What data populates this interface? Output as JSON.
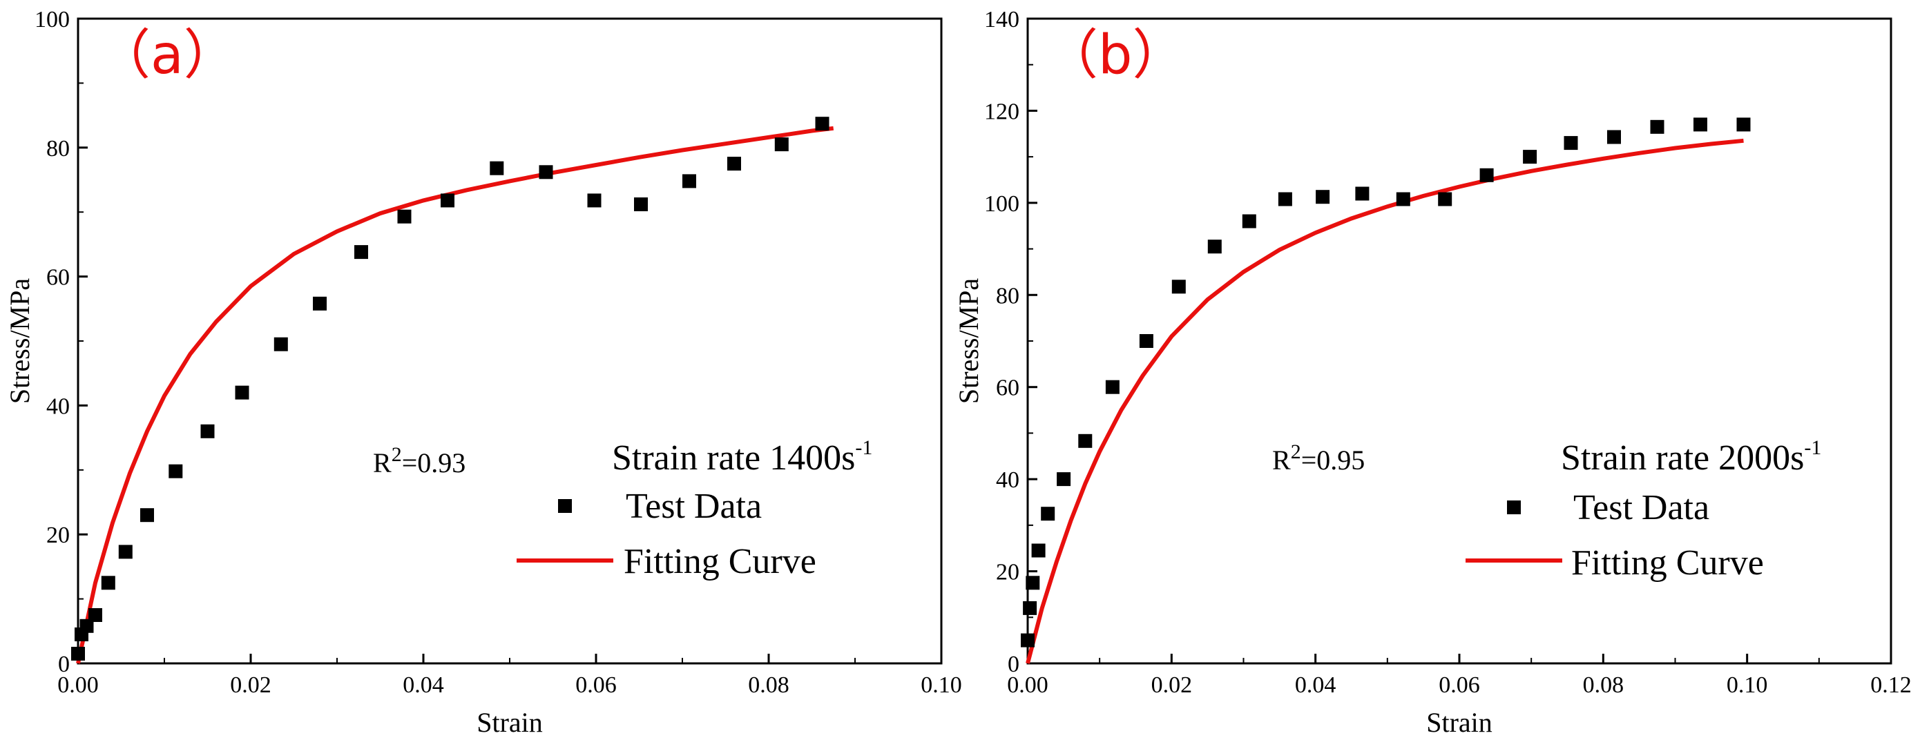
{
  "colors": {
    "marker": "#000000",
    "curve": "#e8100e",
    "label": "#e8100e",
    "axis": "#000000"
  },
  "chart_data": [
    {
      "type": "scatter",
      "panel_label": "（a）",
      "xlabel": "Strain",
      "ylabel": "Stress/MPa",
      "xlim": [
        0,
        0.1
      ],
      "ylim": [
        0,
        100
      ],
      "xticks": [
        "0.00",
        "0.02",
        "0.04",
        "0.06",
        "0.08",
        "0.10"
      ],
      "yticks": [
        "0",
        "20",
        "40",
        "60",
        "80",
        "100"
      ],
      "rate_text": "Strain rate 1400s",
      "rate_sup": "-1",
      "r2_prefix": "R",
      "r2_sup": "2",
      "r2_value": "=0.93",
      "legend": {
        "markers": "Test Data",
        "curve": "Fitting Curve"
      },
      "series": [
        {
          "name": "Test Data",
          "x": [
            0.0,
            0.0004,
            0.001,
            0.002,
            0.0035,
            0.0055,
            0.008,
            0.0113,
            0.015,
            0.019,
            0.0235,
            0.028,
            0.0328,
            0.0378,
            0.0428,
            0.0485,
            0.0542,
            0.0598,
            0.0652,
            0.0708,
            0.076,
            0.0815,
            0.0862
          ],
          "y": [
            1.5,
            4.5,
            5.8,
            7.5,
            12.5,
            17.3,
            23.0,
            29.8,
            36.0,
            42.0,
            49.5,
            55.8,
            63.8,
            69.3,
            71.8,
            76.8,
            76.2,
            71.8,
            71.2,
            74.8,
            77.5,
            80.5,
            83.7
          ]
        },
        {
          "name": "Fitting Curve",
          "x": [
            0.0,
            0.002,
            0.004,
            0.006,
            0.008,
            0.01,
            0.013,
            0.016,
            0.02,
            0.025,
            0.03,
            0.035,
            0.04,
            0.045,
            0.05,
            0.055,
            0.06,
            0.065,
            0.07,
            0.075,
            0.08,
            0.085,
            0.0875
          ],
          "y": [
            0,
            12.5,
            21.8,
            29.5,
            36.0,
            41.5,
            48.0,
            53.0,
            58.5,
            63.5,
            67.0,
            69.8,
            71.8,
            73.4,
            74.8,
            76.1,
            77.3,
            78.5,
            79.6,
            80.6,
            81.6,
            82.6,
            83.0
          ]
        }
      ]
    },
    {
      "type": "scatter",
      "panel_label": "（b）",
      "xlabel": "Strain",
      "ylabel": "Stress/MPa",
      "xlim": [
        0,
        0.12
      ],
      "ylim": [
        0,
        140
      ],
      "xticks": [
        "0.00",
        "0.02",
        "0.04",
        "0.06",
        "0.08",
        "0.10",
        "0.12"
      ],
      "yticks": [
        "0",
        "20",
        "40",
        "60",
        "80",
        "100",
        "120",
        "140"
      ],
      "rate_text": "Strain rate 2000s",
      "rate_sup": "-1",
      "r2_prefix": "R",
      "r2_sup": "2",
      "r2_value": "=0.95",
      "legend": {
        "markers": "Test Data",
        "curve": "Fitting Curve"
      },
      "series": [
        {
          "name": "Test Data",
          "x": [
            0.0,
            0.0003,
            0.0007,
            0.0015,
            0.0028,
            0.005,
            0.008,
            0.0118,
            0.0165,
            0.021,
            0.026,
            0.0308,
            0.0358,
            0.041,
            0.0465,
            0.0522,
            0.058,
            0.0638,
            0.0698,
            0.0755,
            0.0815,
            0.0875,
            0.0935,
            0.0995
          ],
          "y": [
            5.0,
            12.0,
            17.5,
            24.5,
            32.5,
            40.0,
            48.3,
            60.0,
            70.0,
            81.8,
            90.5,
            96.0,
            100.8,
            101.3,
            102.0,
            100.8,
            100.8,
            106.0,
            110.0,
            113.0,
            114.3,
            116.5,
            117.0,
            117.0
          ]
        },
        {
          "name": "Fitting Curve",
          "x": [
            0.0,
            0.002,
            0.004,
            0.006,
            0.008,
            0.01,
            0.013,
            0.016,
            0.02,
            0.025,
            0.03,
            0.035,
            0.04,
            0.045,
            0.05,
            0.055,
            0.06,
            0.065,
            0.07,
            0.075,
            0.08,
            0.085,
            0.09,
            0.095,
            0.0995
          ],
          "y": [
            0,
            12.0,
            22.0,
            31.0,
            39.0,
            46.0,
            55.0,
            62.5,
            71.0,
            79.0,
            85.0,
            89.8,
            93.5,
            96.6,
            99.2,
            101.5,
            103.5,
            105.3,
            106.9,
            108.3,
            109.6,
            110.8,
            111.9,
            112.8,
            113.5
          ]
        }
      ]
    }
  ]
}
